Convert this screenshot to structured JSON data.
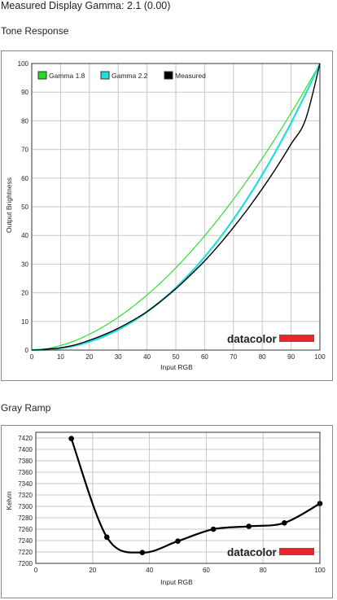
{
  "page": {
    "title": "Measured Display Gamma: 2.1 (0.00)",
    "tone_section_title": "Tone Response",
    "gray_section_title": "Gray Ramp"
  },
  "watermark": {
    "text": "datacolor",
    "bar_color": "#e8262d"
  },
  "colors": {
    "gamma18": "#22dd22",
    "gamma22": "#22dddd",
    "measured": "#000000",
    "grid": "#c8c8c8"
  },
  "chart_data": [
    {
      "type": "line",
      "title": "Tone Response",
      "xlabel": "Input RGB",
      "ylabel": "Output Brightness",
      "xlim": [
        0,
        100
      ],
      "ylim": [
        0,
        100
      ],
      "xticks": [
        0,
        10,
        20,
        30,
        40,
        50,
        60,
        70,
        80,
        90,
        100
      ],
      "yticks": [
        0,
        10,
        20,
        30,
        40,
        50,
        60,
        70,
        80,
        90,
        100
      ],
      "grid": true,
      "legend": "top-left",
      "series": [
        {
          "name": "Gamma 1.8",
          "gamma": 1.8,
          "color": "#22dd22"
        },
        {
          "name": "Gamma 2.2",
          "gamma": 2.2,
          "color": "#22dddd"
        },
        {
          "name": "Measured",
          "color": "#000000",
          "x": [
            0,
            5,
            10,
            15,
            20,
            25,
            30,
            35,
            40,
            45,
            50,
            55,
            60,
            65,
            70,
            75,
            80,
            85,
            90,
            95,
            100
          ],
          "y": [
            0,
            0.3,
            0.8,
            1.8,
            3.4,
            5.3,
            7.6,
            10.3,
            13.4,
            17.2,
            21.4,
            26.1,
            31.1,
            36.7,
            42.8,
            49.3,
            56.3,
            63.8,
            71.9,
            80.4,
            100
          ]
        }
      ]
    },
    {
      "type": "line",
      "title": "Gray Ramp",
      "xlabel": "Input RGB",
      "ylabel": "Kelvin",
      "xlim": [
        0,
        100
      ],
      "ylim": [
        7200,
        7430
      ],
      "xticks": [
        0,
        20,
        40,
        60,
        80,
        100
      ],
      "yticks": [
        7200,
        7220,
        7240,
        7260,
        7280,
        7300,
        7320,
        7340,
        7360,
        7380,
        7400,
        7420
      ],
      "grid": true,
      "series": [
        {
          "x": [
            12.5,
            25,
            37.5,
            50,
            62.5,
            75,
            87.5,
            100
          ],
          "y": [
            7419,
            7246,
            7219,
            7239,
            7260,
            7265,
            7271,
            7305
          ]
        }
      ]
    }
  ]
}
